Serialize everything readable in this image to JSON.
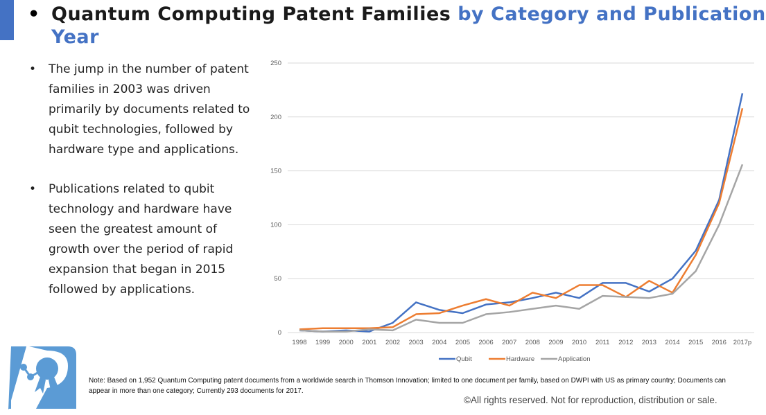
{
  "title": {
    "part1": "Quantum Computing Patent Families",
    "part2": "by Category and Publication Year",
    "bullet": "•"
  },
  "bullets": [
    "The jump in the number of patent families in 2003 was driven primarily by documents related to qubit technologies, followed by hardware type and applications.",
    "Publications related to qubit technology and hardware have seen the greatest amount of growth over the period of rapid expansion that began in 2015 followed by applications."
  ],
  "note": "Note: Based on 1,952 Quantum Computing patent documents from a worldwide search in Thomson Innovation; limited to one document per family, based on DWPI with US as primary country; Documents can appear in more than one category; Currently 293 documents for 2017.",
  "rights": "©All rights reserved. Not for reproduction, distribution or sale.",
  "logo": {
    "icon": "patent-ribbon-logo",
    "color": "#5b9bd5"
  },
  "chart_data": {
    "type": "line",
    "categories": [
      "1998",
      "1999",
      "2000",
      "2001",
      "2002",
      "2003",
      "2004",
      "2005",
      "2006",
      "2007",
      "2008",
      "2009",
      "2010",
      "2011",
      "2012",
      "2013",
      "2014",
      "2015",
      "2016",
      "2017p"
    ],
    "yticks": [
      "0",
      "50",
      "100",
      "150",
      "200",
      "250"
    ],
    "ylim": [
      0,
      250
    ],
    "grid": true,
    "legend": "bottom",
    "series": [
      {
        "name": "Qubit",
        "color": "#4472c4",
        "values": [
          2,
          1,
          2,
          1,
          9,
          28,
          21,
          18,
          26,
          28,
          32,
          37,
          32,
          46,
          46,
          38,
          50,
          76,
          123,
          222
        ]
      },
      {
        "name": "Hardware",
        "color": "#ed7d31",
        "values": [
          3,
          4,
          4,
          4,
          5,
          17,
          18,
          25,
          31,
          25,
          37,
          32,
          44,
          44,
          33,
          48,
          37,
          72,
          120,
          208
        ]
      },
      {
        "name": "Application",
        "color": "#a5a5a5",
        "values": [
          2,
          1,
          1,
          3,
          2,
          12,
          9,
          9,
          17,
          19,
          22,
          25,
          22,
          34,
          33,
          32,
          36,
          57,
          100,
          156
        ]
      }
    ]
  }
}
